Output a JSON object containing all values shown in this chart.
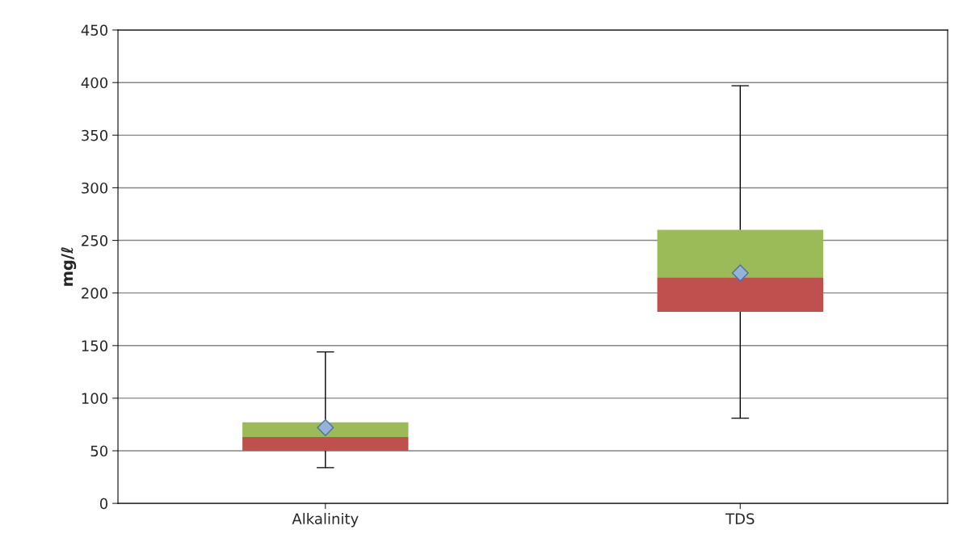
{
  "chart_data": {
    "type": "box",
    "ylabel": "mg/ℓ",
    "categories": [
      "Alkalinity",
      "TDS"
    ],
    "boxes": [
      {
        "low": 34,
        "q1": 50,
        "median": 63,
        "q3": 77,
        "high": 144,
        "mean": 72
      },
      {
        "low": 81,
        "q1": 182,
        "median": 215,
        "q3": 260,
        "high": 397,
        "mean": 219
      }
    ],
    "marker": "diamond",
    "ylim": [
      0,
      450
    ],
    "yticks": [
      0,
      50,
      100,
      150,
      200,
      250,
      300,
      350,
      400,
      450
    ],
    "grid": "y",
    "legend": false
  }
}
